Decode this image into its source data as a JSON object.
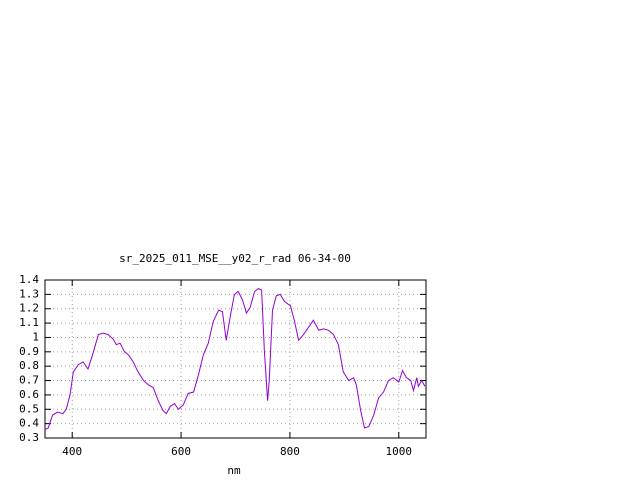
{
  "chart_data": {
    "type": "line",
    "title": "sr_2025_011_MSE__y02_r_rad 06-34-00",
    "x_label": "nm",
    "xlim": [
      350,
      1050
    ],
    "xticks": [
      400,
      600,
      800,
      1000
    ],
    "ylim": [
      0.3,
      1.4
    ],
    "yticks": [
      0.3,
      0.4,
      0.5,
      0.6,
      0.7,
      0.8,
      0.9,
      1,
      1.1,
      1.2,
      1.3,
      1.4
    ],
    "grid": true,
    "x": [
      350,
      356,
      364,
      373,
      383,
      389,
      396,
      402,
      411,
      420,
      429,
      439,
      448,
      457,
      466,
      475,
      481,
      488,
      496,
      503,
      512,
      521,
      531,
      540,
      549,
      558,
      567,
      573,
      580,
      588,
      595,
      604,
      613,
      623,
      632,
      641,
      650,
      659,
      669,
      676,
      683,
      691,
      698,
      705,
      713,
      720,
      727,
      735,
      742,
      748,
      753,
      759,
      762,
      768,
      775,
      782,
      790,
      801,
      808,
      816,
      825,
      834,
      843,
      853,
      862,
      871,
      880,
      889,
      898,
      908,
      917,
      922,
      930,
      937,
      945,
      954,
      963,
      972,
      981,
      990,
      1000,
      1007,
      1014,
      1022,
      1027,
      1033,
      1036,
      1042,
      1048
    ],
    "series": [
      {
        "color": "#9400d3",
        "values": [
          0.36,
          0.37,
          0.46,
          0.48,
          0.47,
          0.5,
          0.6,
          0.76,
          0.81,
          0.83,
          0.78,
          0.9,
          1.02,
          1.03,
          1.02,
          0.99,
          0.95,
          0.96,
          0.9,
          0.88,
          0.83,
          0.76,
          0.7,
          0.67,
          0.65,
          0.56,
          0.49,
          0.47,
          0.52,
          0.54,
          0.5,
          0.53,
          0.61,
          0.62,
          0.74,
          0.88,
          0.96,
          1.11,
          1.19,
          1.18,
          0.98,
          1.16,
          1.3,
          1.32,
          1.26,
          1.17,
          1.21,
          1.32,
          1.34,
          1.33,
          0.91,
          0.56,
          0.7,
          1.19,
          1.29,
          1.3,
          1.25,
          1.22,
          1.12,
          0.98,
          1.02,
          1.07,
          1.12,
          1.05,
          1.06,
          1.05,
          1.02,
          0.95,
          0.76,
          0.7,
          0.72,
          0.67,
          0.49,
          0.37,
          0.38,
          0.46,
          0.58,
          0.62,
          0.7,
          0.72,
          0.69,
          0.77,
          0.72,
          0.7,
          0.63,
          0.72,
          0.66,
          0.7,
          0.66
        ]
      }
    ]
  }
}
